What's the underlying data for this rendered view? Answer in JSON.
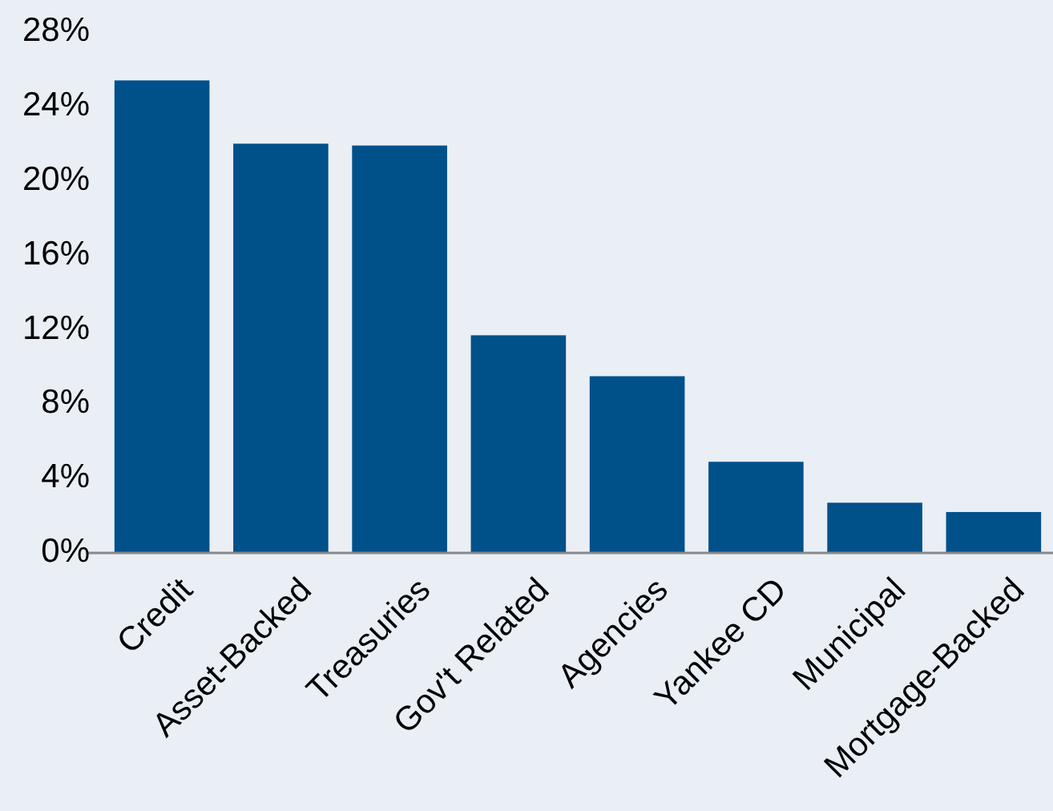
{
  "chart_data": {
    "type": "bar",
    "categories": [
      "Credit",
      "Asset-Backed",
      "Treasuries",
      "Gov't Related",
      "Agencies",
      "Yankee CD",
      "Municipal",
      "Mortgage-Backed"
    ],
    "values": [
      25.4,
      22.0,
      21.9,
      11.7,
      9.5,
      4.9,
      2.7,
      2.2
    ],
    "color": "#00508a",
    "ylim": [
      0,
      28
    ],
    "yticks": [
      {
        "value": 0,
        "label": "0%"
      },
      {
        "value": 4,
        "label": "4%"
      },
      {
        "value": 8,
        "label": "8%"
      },
      {
        "value": 12,
        "label": "12%"
      },
      {
        "value": 16,
        "label": "16%"
      },
      {
        "value": 20,
        "label": "20%"
      },
      {
        "value": 24,
        "label": "24%"
      },
      {
        "value": 28,
        "label": "28%"
      }
    ],
    "grid": false
  }
}
